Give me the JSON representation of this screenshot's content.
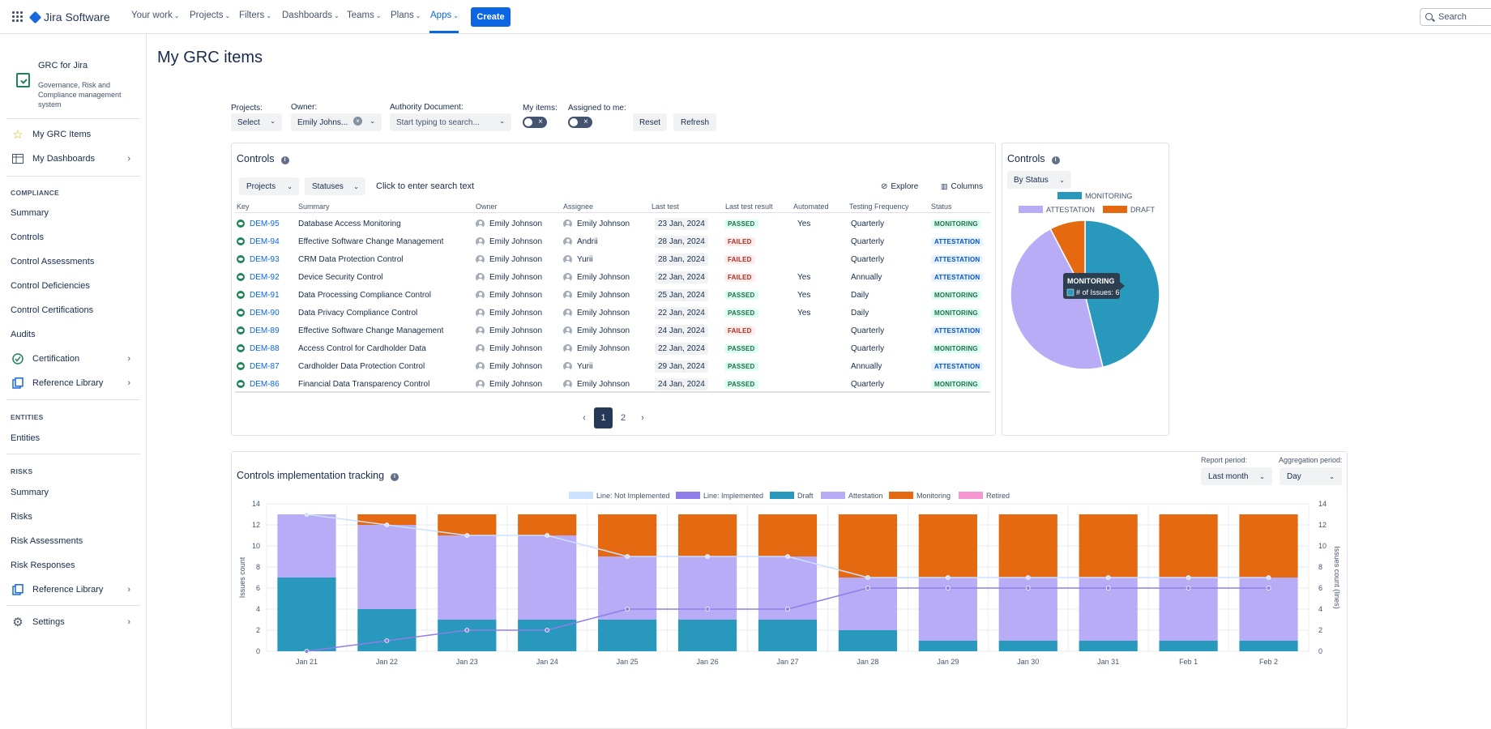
{
  "topnav": {
    "product": "Jira Software",
    "items": [
      {
        "label": "Your work"
      },
      {
        "label": "Projects"
      },
      {
        "label": "Filters"
      },
      {
        "label": "Dashboards"
      },
      {
        "label": "Teams"
      },
      {
        "label": "Plans"
      },
      {
        "label": "Apps"
      }
    ],
    "create_label": "Create",
    "search_placeholder": "Search"
  },
  "sidebar": {
    "app_title": "GRC for Jira",
    "app_desc": "Governance, Risk and Compliance management system",
    "my_grc_items": "My GRC Items",
    "my_dashboards": "My Dashboards",
    "compliance_heading": "COMPLIANCE",
    "compliance_items": [
      "Summary",
      "Controls",
      "Control Assessments",
      "Control Deficiencies",
      "Control Certifications",
      "Audits"
    ],
    "certification": "Certification",
    "reference_library": "Reference Library",
    "entities_heading": "ENTITIES",
    "entities": "Entities",
    "risks_heading": "RISKS",
    "risk_items": [
      "Summary",
      "Risks",
      "Risk Assessments",
      "Risk Responses"
    ],
    "reference_library_2": "Reference Library",
    "settings": "Settings"
  },
  "page": {
    "title": "My GRC items"
  },
  "filters": {
    "projects_label": "Projects:",
    "projects_value": "Select",
    "owner_label": "Owner:",
    "owner_value": "Emily Johns...",
    "authority_label": "Authority Document:",
    "authority_placeholder": "Start typing to search...",
    "my_items_label": "My items:",
    "assigned_label": "Assigned to me:",
    "reset": "Reset",
    "refresh": "Refresh"
  },
  "controls_table": {
    "title": "Controls",
    "projects_btn": "Projects",
    "statuses_btn": "Statuses",
    "search_text": "Click to enter search text",
    "explore": "Explore",
    "columns": "Columns",
    "headers": [
      "Key",
      "Summary",
      "Owner",
      "Assignee",
      "Last test",
      "Last test result",
      "Automated",
      "Testing Frequency",
      "Status"
    ],
    "rows": [
      {
        "key": "DEM-95",
        "summary": "Database Access Monitoring",
        "owner": "Emily Johnson",
        "assignee": "Emily Johnson",
        "last_test": "23 Jan, 2024",
        "result": "PASSED",
        "automated": "Yes",
        "frequency": "Quarterly",
        "status": "MONITORING"
      },
      {
        "key": "DEM-94",
        "summary": "Effective Software Change Management",
        "owner": "Emily Johnson",
        "assignee": "Andrii",
        "last_test": "28 Jan, 2024",
        "result": "FAILED",
        "automated": "",
        "frequency": "Quarterly",
        "status": "ATTESTATION"
      },
      {
        "key": "DEM-93",
        "summary": "CRM Data Protection Control",
        "owner": "Emily Johnson",
        "assignee": "Yurii",
        "last_test": "28 Jan, 2024",
        "result": "FAILED",
        "automated": "",
        "frequency": "Quarterly",
        "status": "ATTESTATION"
      },
      {
        "key": "DEM-92",
        "summary": "Device Security Control",
        "owner": "Emily Johnson",
        "assignee": "Emily Johnson",
        "last_test": "22 Jan, 2024",
        "result": "FAILED",
        "automated": "Yes",
        "frequency": "Annually",
        "status": "ATTESTATION"
      },
      {
        "key": "DEM-91",
        "summary": "Data Processing Compliance Control",
        "owner": "Emily Johnson",
        "assignee": "Emily Johnson",
        "last_test": "25 Jan, 2024",
        "result": "PASSED",
        "automated": "Yes",
        "frequency": "Daily",
        "status": "MONITORING"
      },
      {
        "key": "DEM-90",
        "summary": "Data Privacy Compliance Control",
        "owner": "Emily Johnson",
        "assignee": "Emily Johnson",
        "last_test": "22 Jan, 2024",
        "result": "PASSED",
        "automated": "Yes",
        "frequency": "Daily",
        "status": "MONITORING"
      },
      {
        "key": "DEM-89",
        "summary": "Effective Software Change Management",
        "owner": "Emily Johnson",
        "assignee": "Emily Johnson",
        "last_test": "24 Jan, 2024",
        "result": "FAILED",
        "automated": "",
        "frequency": "Quarterly",
        "status": "ATTESTATION"
      },
      {
        "key": "DEM-88",
        "summary": "Access Control for Cardholder Data",
        "owner": "Emily Johnson",
        "assignee": "Emily Johnson",
        "last_test": "22 Jan, 2024",
        "result": "PASSED",
        "automated": "",
        "frequency": "Quarterly",
        "status": "MONITORING"
      },
      {
        "key": "DEM-87",
        "summary": "Cardholder Data Protection Control",
        "owner": "Emily Johnson",
        "assignee": "Yurii",
        "last_test": "29 Jan, 2024",
        "result": "PASSED",
        "automated": "",
        "frequency": "Annually",
        "status": "ATTESTATION"
      },
      {
        "key": "DEM-86",
        "summary": "Financial Data Transparency Control",
        "owner": "Emily Johnson",
        "assignee": "Emily Johnson",
        "last_test": "24 Jan, 2024",
        "result": "PASSED",
        "automated": "",
        "frequency": "Quarterly",
        "status": "MONITORING"
      }
    ],
    "pages": [
      "1",
      "2"
    ]
  },
  "colors": {
    "passed_bg": "#dcfff1",
    "passed_fg": "#216e4e",
    "failed_bg": "#ffeceb",
    "failed_fg": "#ae2e24",
    "monitoring_bg": "#dcfff1",
    "monitoring_fg": "#216e4e",
    "attestation_bg": "#e9f2ff",
    "attestation_fg": "#0055cc",
    "draft": "#e56910",
    "attestation": "#b8acf6",
    "monitoring_pie": "#2898bd",
    "line_not_impl": "#cce0ff",
    "line_impl": "#8f7ee7",
    "retired": "#f797d2"
  },
  "chart_data": [
    {
      "type": "pie",
      "title": "Controls",
      "group_by": "By Status",
      "labels": [
        "MONITORING",
        "ATTESTATION",
        "DRAFT"
      ],
      "values": [
        6,
        6,
        1
      ],
      "colors": [
        "#2898bd",
        "#b8acf6",
        "#e56910"
      ],
      "tooltip": {
        "title": "MONITORING",
        "text": "# of Issues: 6"
      }
    },
    {
      "type": "bar",
      "title": "Controls implementation tracking",
      "stacked": true,
      "report_period_label": "Report period:",
      "report_period": "Last month",
      "aggregation_label": "Aggregation period:",
      "aggregation": "Day",
      "legend": [
        "Line: Not Implemented",
        "Line: Implemented",
        "Draft",
        "Attestation",
        "Monitoring",
        "Retired"
      ],
      "categories": [
        "Jan 21",
        "Jan 22",
        "Jan 23",
        "Jan 24",
        "Jan 25",
        "Jan 26",
        "Jan 27",
        "Jan 28",
        "Jan 29",
        "Jan 30",
        "Jan 31",
        "Feb 1",
        "Feb 2"
      ],
      "series": [
        {
          "name": "Draft",
          "values": [
            7,
            4,
            3,
            3,
            3,
            3,
            3,
            2,
            1,
            1,
            1,
            1,
            1
          ]
        },
        {
          "name": "Attestation",
          "values": [
            6,
            8,
            8,
            8,
            6,
            6,
            6,
            5,
            6,
            6,
            6,
            6,
            6
          ]
        },
        {
          "name": "Monitoring",
          "values": [
            0,
            1,
            2,
            2,
            4,
            4,
            4,
            6,
            6,
            6,
            6,
            6,
            6
          ]
        },
        {
          "name": "Retired",
          "values": [
            0,
            0,
            0,
            0,
            0,
            0,
            0,
            0,
            0,
            0,
            0,
            0,
            0
          ]
        }
      ],
      "lines": [
        {
          "name": "Line: Not Implemented",
          "values": [
            13,
            12,
            11,
            11,
            9,
            9,
            9,
            7,
            7,
            7,
            7,
            7,
            7
          ]
        },
        {
          "name": "Line: Implemented",
          "values": [
            0,
            1,
            2,
            2,
            4,
            4,
            4,
            6,
            6,
            6,
            6,
            6,
            6
          ]
        }
      ],
      "ylabel": "Issues count",
      "ylabel_right": "Issues count (lines)",
      "ylim": [
        0,
        14
      ],
      "yticks": [
        0,
        2,
        4,
        6,
        8,
        10,
        12,
        14
      ]
    }
  ]
}
